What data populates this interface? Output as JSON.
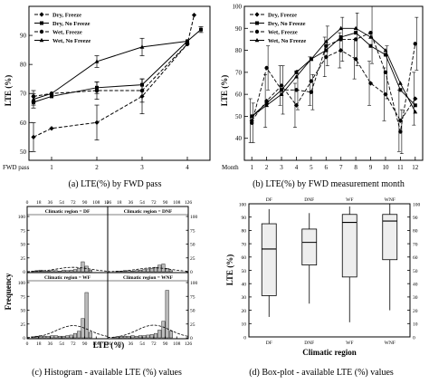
{
  "chart_data": [
    {
      "panel": "a",
      "type": "line",
      "caption": "(a) LTE(%) by FWD pass",
      "xlabel": "FWD pass",
      "ylabel": "LTE (%)",
      "x": [
        1,
        2,
        3,
        4
      ],
      "xticks": [
        "1",
        "2",
        "3",
        "4"
      ],
      "yticks": [
        50,
        60,
        70,
        80,
        90
      ],
      "ylim": [
        47,
        100
      ],
      "series": [
        {
          "name": "Dry, Freeze",
          "style": "dash-diamond",
          "x": [
            0.6,
            1,
            2,
            3,
            4,
            4.15
          ],
          "values": [
            55,
            58,
            60,
            69,
            87,
            97
          ],
          "err": [
            5,
            0,
            6,
            6,
            0,
            0
          ]
        },
        {
          "name": "Dry, No Freeze",
          "style": "solid-square",
          "x": [
            0.6,
            1,
            2,
            3,
            4,
            4.3
          ],
          "values": [
            67,
            69,
            72,
            73,
            88,
            92
          ],
          "err": [
            2,
            0,
            2,
            2,
            0,
            1
          ]
        },
        {
          "name": "Wet, Freeze",
          "style": "dash-circle",
          "x": [
            0.6,
            1,
            2,
            3,
            4
          ],
          "values": [
            69,
            70,
            71,
            71,
            87
          ],
          "err": [
            2,
            0,
            3,
            4,
            0
          ]
        },
        {
          "name": "Wet, No Freeze",
          "style": "solid-triangle",
          "x": [
            0.6,
            1,
            2,
            3,
            4
          ],
          "values": [
            68,
            70,
            81,
            86,
            88
          ],
          "err": [
            2,
            0,
            2,
            3,
            0
          ]
        }
      ],
      "legend": "top-left"
    },
    {
      "panel": "b",
      "type": "line",
      "caption": "(b) LTE(%) by FWD measurement month",
      "xlabel": "Month",
      "ylabel": "LTE (%)",
      "x": [
        1,
        2,
        3,
        4,
        5,
        6,
        7,
        8,
        9,
        10,
        11,
        12
      ],
      "xticks": [
        "1",
        "2",
        "3",
        "4",
        "5",
        "6",
        "7",
        "8",
        "9",
        "10",
        "11",
        "12"
      ],
      "yticks": [
        40,
        50,
        60,
        70,
        80,
        90,
        100
      ],
      "ylim": [
        30,
        100
      ],
      "series": [
        {
          "name": "Dry, Freeze",
          "style": "dash-diamond",
          "values": [
            48,
            57,
            64,
            55,
            66,
            77,
            80,
            76,
            65,
            60,
            48,
            58
          ]
        },
        {
          "name": "Dry, No Freeze",
          "style": "solid-square",
          "values": [
            50,
            56,
            62,
            70,
            76,
            80,
            86,
            88,
            82,
            78,
            62,
            55
          ]
        },
        {
          "name": "Wet, Freeze",
          "style": "dash-circle",
          "values": [
            47,
            72,
            62,
            62,
            61,
            82,
            85,
            85,
            88,
            70,
            43,
            83
          ]
        },
        {
          "name": "Wet, No Freeze",
          "style": "solid-triangle",
          "values": [
            50,
            55,
            60,
            68,
            76,
            84,
            90,
            90,
            86,
            80,
            65,
            52
          ]
        }
      ],
      "legend": "top-left"
    },
    {
      "panel": "c",
      "type": "bar",
      "caption": "(c) Histogram - available LTE (%) values",
      "xlabel": "LTE (%)",
      "ylabel": "Frequency",
      "xticks": [
        "0",
        "18",
        "36",
        "54",
        "72",
        "90",
        "108",
        "126"
      ],
      "yticks_left": [
        "0",
        "25",
        "50",
        "75",
        "100"
      ],
      "yticks_right": [
        "0",
        "25",
        "50",
        "75",
        "100"
      ],
      "xlim": [
        0,
        126
      ],
      "ylim": [
        0,
        100
      ],
      "bin_edges": [
        0,
        6,
        12,
        18,
        24,
        30,
        36,
        42,
        48,
        54,
        60,
        66,
        72,
        78,
        84,
        90,
        96,
        102,
        108,
        114,
        120,
        126
      ],
      "subplots": [
        {
          "title": "Climatic region = DF",
          "values": [
            0,
            1,
            2,
            3,
            2,
            1,
            2,
            2,
            1,
            3,
            2,
            3,
            4,
            6,
            18,
            10,
            3,
            0,
            0,
            0,
            0
          ]
        },
        {
          "title": "Climatic region = DNF",
          "values": [
            0,
            0,
            1,
            1,
            2,
            2,
            1,
            2,
            3,
            4,
            5,
            6,
            8,
            12,
            14,
            6,
            2,
            0,
            0,
            0,
            0
          ]
        },
        {
          "title": "Climatic region = WF",
          "values": [
            0,
            2,
            3,
            4,
            3,
            3,
            4,
            4,
            3,
            3,
            4,
            5,
            8,
            12,
            35,
            82,
            10,
            0,
            0,
            0,
            0
          ]
        },
        {
          "title": "Climatic region = WNF",
          "values": [
            0,
            1,
            2,
            3,
            3,
            3,
            4,
            3,
            4,
            4,
            5,
            6,
            8,
            14,
            30,
            86,
            12,
            0,
            0,
            0,
            0
          ]
        }
      ]
    },
    {
      "panel": "d",
      "type": "box",
      "caption": "(d) Box-plot - available LTE (%) values",
      "xlabel": "Climatic region",
      "ylabel": "LTE (%)",
      "categories": [
        "DF",
        "DNF",
        "WF",
        "WNF"
      ],
      "yticks": [
        0,
        10,
        20,
        30,
        40,
        50,
        60,
        70,
        80,
        90,
        100
      ],
      "ylim": [
        0,
        100
      ],
      "boxes": [
        {
          "min": 15,
          "q1": 31,
          "median": 66,
          "q3": 85,
          "max": 96
        },
        {
          "min": 25,
          "q1": 54,
          "median": 71,
          "q3": 81,
          "max": 93
        },
        {
          "min": 11,
          "q1": 45,
          "median": 86,
          "q3": 92,
          "max": 98
        },
        {
          "min": 20,
          "q1": 58,
          "median": 87,
          "q3": 92,
          "max": 100
        }
      ]
    }
  ]
}
